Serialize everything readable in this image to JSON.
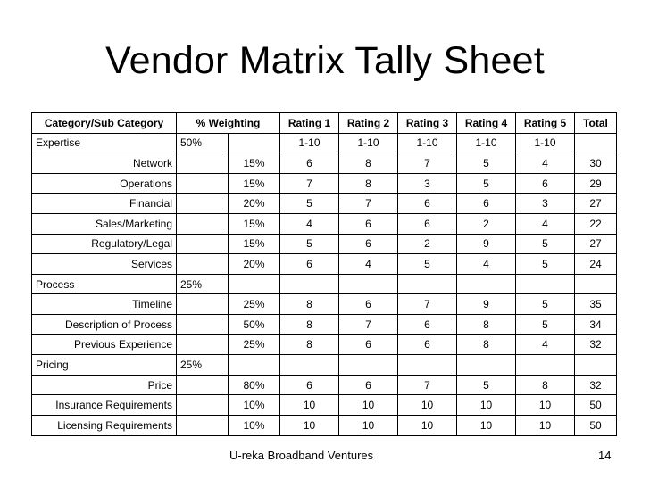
{
  "title": "Vendor Matrix Tally Sheet",
  "headers": [
    "Category/Sub Category",
    "% Weighting",
    "Rating 1",
    "Rating 2",
    "Rating 3",
    "Rating 4",
    "Rating 5",
    "Total"
  ],
  "rows": [
    {
      "type": "category",
      "name": "Expertise",
      "weight": "50%",
      "pct": "",
      "r": [
        "1-10",
        "1-10",
        "1-10",
        "1-10",
        "1-10"
      ],
      "total": ""
    },
    {
      "type": "sub",
      "name": "Network",
      "weight": "",
      "pct": "15%",
      "r": [
        "6",
        "8",
        "7",
        "5",
        "4"
      ],
      "total": "30"
    },
    {
      "type": "sub",
      "name": "Operations",
      "weight": "",
      "pct": "15%",
      "r": [
        "7",
        "8",
        "3",
        "5",
        "6"
      ],
      "total": "29"
    },
    {
      "type": "sub",
      "name": "Financial",
      "weight": "",
      "pct": "20%",
      "r": [
        "5",
        "7",
        "6",
        "6",
        "3"
      ],
      "total": "27"
    },
    {
      "type": "sub",
      "name": "Sales/Marketing",
      "weight": "",
      "pct": "15%",
      "r": [
        "4",
        "6",
        "6",
        "2",
        "4"
      ],
      "total": "22"
    },
    {
      "type": "sub",
      "name": "Regulatory/Legal",
      "weight": "",
      "pct": "15%",
      "r": [
        "5",
        "6",
        "2",
        "9",
        "5"
      ],
      "total": "27"
    },
    {
      "type": "sub",
      "name": "Services",
      "weight": "",
      "pct": "20%",
      "r": [
        "6",
        "4",
        "5",
        "4",
        "5"
      ],
      "total": "24"
    },
    {
      "type": "category",
      "name": "Process",
      "weight": "25%",
      "pct": "",
      "r": [
        "",
        "",
        "",
        "",
        ""
      ],
      "total": ""
    },
    {
      "type": "sub",
      "name": "Timeline",
      "weight": "",
      "pct": "25%",
      "r": [
        "8",
        "6",
        "7",
        "9",
        "5"
      ],
      "total": "35"
    },
    {
      "type": "sub",
      "name": "Description of Process",
      "weight": "",
      "pct": "50%",
      "r": [
        "8",
        "7",
        "6",
        "8",
        "5"
      ],
      "total": "34"
    },
    {
      "type": "sub",
      "name": "Previous Experience",
      "weight": "",
      "pct": "25%",
      "r": [
        "8",
        "6",
        "6",
        "8",
        "4"
      ],
      "total": "32"
    },
    {
      "type": "category",
      "name": "Pricing",
      "weight": "25%",
      "pct": "",
      "r": [
        "",
        "",
        "",
        "",
        ""
      ],
      "total": ""
    },
    {
      "type": "sub",
      "name": "Price",
      "weight": "",
      "pct": "80%",
      "r": [
        "6",
        "6",
        "7",
        "5",
        "8"
      ],
      "total": "32"
    },
    {
      "type": "sub",
      "name": "Insurance Requirements",
      "weight": "",
      "pct": "10%",
      "r": [
        "10",
        "10",
        "10",
        "10",
        "10"
      ],
      "total": "50"
    },
    {
      "type": "sub",
      "name": "Licensing Requirements",
      "weight": "",
      "pct": "10%",
      "r": [
        "10",
        "10",
        "10",
        "10",
        "10"
      ],
      "total": "50"
    }
  ],
  "footer": {
    "org": "U-reka Broadband Ventures",
    "page": "14"
  }
}
